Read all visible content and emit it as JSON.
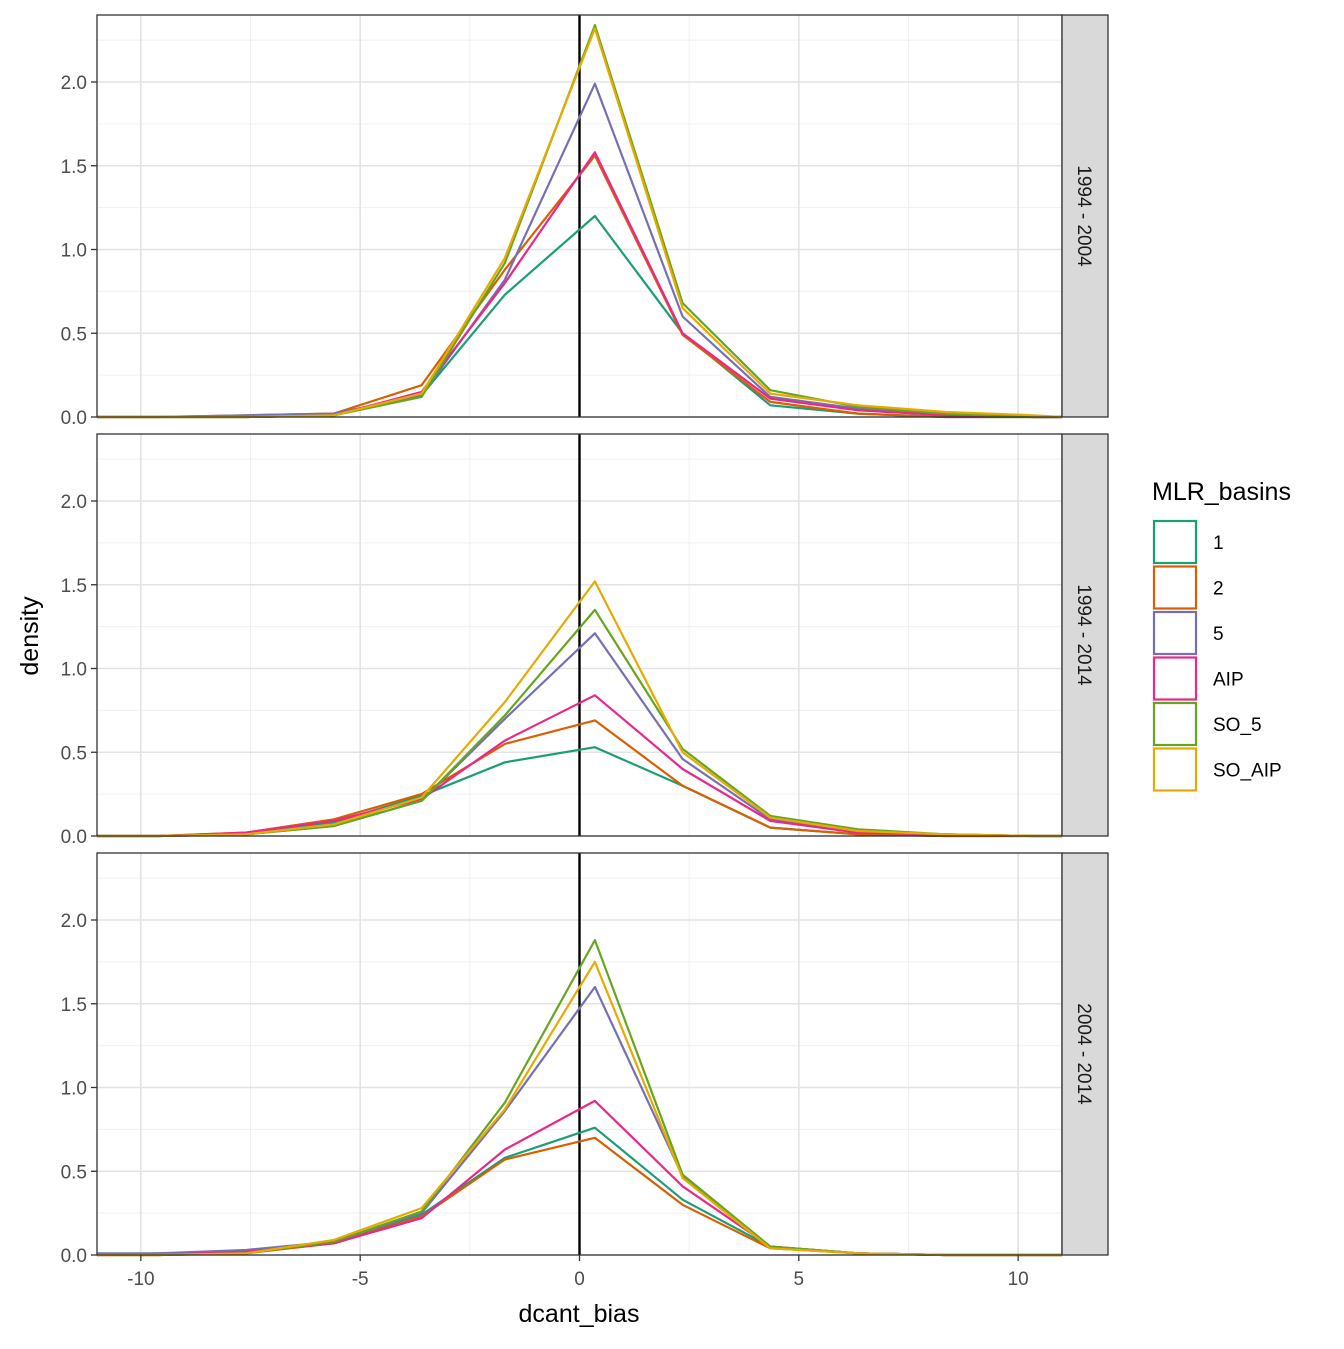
{
  "chart_data": {
    "type": "line",
    "xlabel": "dcant_bias",
    "ylabel": "density",
    "xlim": [
      -11,
      11
    ],
    "ylim": [
      0,
      2.4
    ],
    "x_ticks": [
      -10,
      -5,
      0,
      5,
      10
    ],
    "x_tick_labels": [
      "-10",
      "-5",
      "0",
      "5",
      "10"
    ],
    "y_ticks": [
      0,
      0.5,
      1,
      1.5,
      2
    ],
    "y_tick_labels": [
      "0.0",
      "0.5",
      "1.0",
      "1.5",
      "2.0"
    ],
    "vline_x": 0,
    "grid": true,
    "legend": {
      "title": "MLR_basins",
      "position": "right",
      "entries": [
        "1",
        "2",
        "5",
        "AIP",
        "SO_5",
        "SO_AIP"
      ]
    },
    "colors": {
      "1": "#1B9E77",
      "2": "#D95F02",
      "5": "#7570B3",
      "AIP": "#E7298A",
      "SO_5": "#66A61E",
      "SO_AIP": "#E6AB02"
    },
    "x": [
      -11,
      -9.6,
      -7.6,
      -5.6,
      -3.6,
      -1.7,
      0.35,
      2.35,
      4.35,
      6.35,
      8.35,
      10.35,
      11
    ],
    "panels": [
      {
        "strip": "1994 - 2004",
        "series": [
          {
            "name": "1",
            "values": [
              0,
              0,
              0,
              0.01,
              0.13,
              0.73,
              1.2,
              0.5,
              0.07,
              0.02,
              0,
              0,
              0
            ]
          },
          {
            "name": "2",
            "values": [
              0,
              0,
              0.01,
              0.02,
              0.19,
              0.88,
              1.56,
              0.49,
              0.09,
              0.02,
              0,
              0,
              0
            ]
          },
          {
            "name": "5",
            "values": [
              0,
              0,
              0.01,
              0.02,
              0.13,
              0.82,
              1.99,
              0.6,
              0.12,
              0.05,
              0.01,
              0,
              0
            ]
          },
          {
            "name": "AIP",
            "values": [
              0,
              0,
              0,
              0.01,
              0.15,
              0.8,
              1.58,
              0.5,
              0.11,
              0.04,
              0.01,
              0,
              0
            ]
          },
          {
            "name": "SO_5",
            "values": [
              0,
              0,
              0,
              0.01,
              0.12,
              0.92,
              2.34,
              0.68,
              0.16,
              0.06,
              0.02,
              0,
              0
            ]
          },
          {
            "name": "SO_AIP",
            "values": [
              0,
              0,
              0,
              0.01,
              0.14,
              0.95,
              2.32,
              0.65,
              0.14,
              0.07,
              0.03,
              0.01,
              0
            ]
          }
        ]
      },
      {
        "strip": "1994 - 2014",
        "series": [
          {
            "name": "1",
            "values": [
              0,
              0,
              0.01,
              0.08,
              0.24,
              0.44,
              0.53,
              0.3,
              0.05,
              0.01,
              0,
              0,
              0
            ]
          },
          {
            "name": "2",
            "values": [
              0,
              0,
              0.02,
              0.1,
              0.25,
              0.55,
              0.69,
              0.3,
              0.05,
              0.01,
              0,
              0,
              0
            ]
          },
          {
            "name": "5",
            "values": [
              0,
              0,
              0.01,
              0.06,
              0.21,
              0.7,
              1.21,
              0.46,
              0.1,
              0.02,
              0.01,
              0,
              0
            ]
          },
          {
            "name": "AIP",
            "values": [
              0,
              0,
              0.02,
              0.09,
              0.22,
              0.57,
              0.84,
              0.4,
              0.09,
              0.02,
              0.01,
              0,
              0
            ]
          },
          {
            "name": "SO_5",
            "values": [
              0,
              0,
              0.01,
              0.06,
              0.21,
              0.72,
              1.35,
              0.52,
              0.12,
              0.04,
              0.01,
              0,
              0
            ]
          },
          {
            "name": "SO_AIP",
            "values": [
              0,
              0,
              0.01,
              0.07,
              0.23,
              0.8,
              1.52,
              0.5,
              0.11,
              0.03,
              0.01,
              0,
              0
            ]
          }
        ]
      },
      {
        "strip": "2004 - 2014",
        "series": [
          {
            "name": "1",
            "values": [
              0,
              0.01,
              0.02,
              0.07,
              0.24,
              0.58,
              0.76,
              0.33,
              0.05,
              0.01,
              0,
              0,
              0
            ]
          },
          {
            "name": "2",
            "values": [
              0,
              0,
              0.01,
              0.07,
              0.23,
              0.57,
              0.7,
              0.3,
              0.04,
              0.01,
              0,
              0,
              0
            ]
          },
          {
            "name": "5",
            "values": [
              0.01,
              0.01,
              0.03,
              0.08,
              0.25,
              0.86,
              1.6,
              0.47,
              0.05,
              0.01,
              0,
              0,
              0
            ]
          },
          {
            "name": "AIP",
            "values": [
              0,
              0,
              0.02,
              0.07,
              0.22,
              0.63,
              0.92,
              0.41,
              0.05,
              0.01,
              0,
              0,
              0
            ]
          },
          {
            "name": "SO_5",
            "values": [
              0,
              0,
              0.01,
              0.08,
              0.26,
              0.91,
              1.88,
              0.48,
              0.05,
              0.01,
              0,
              0,
              0
            ]
          },
          {
            "name": "SO_AIP",
            "values": [
              0,
              0,
              0.01,
              0.09,
              0.28,
              0.87,
              1.75,
              0.46,
              0.04,
              0.01,
              0,
              0,
              0
            ]
          }
        ]
      }
    ]
  }
}
